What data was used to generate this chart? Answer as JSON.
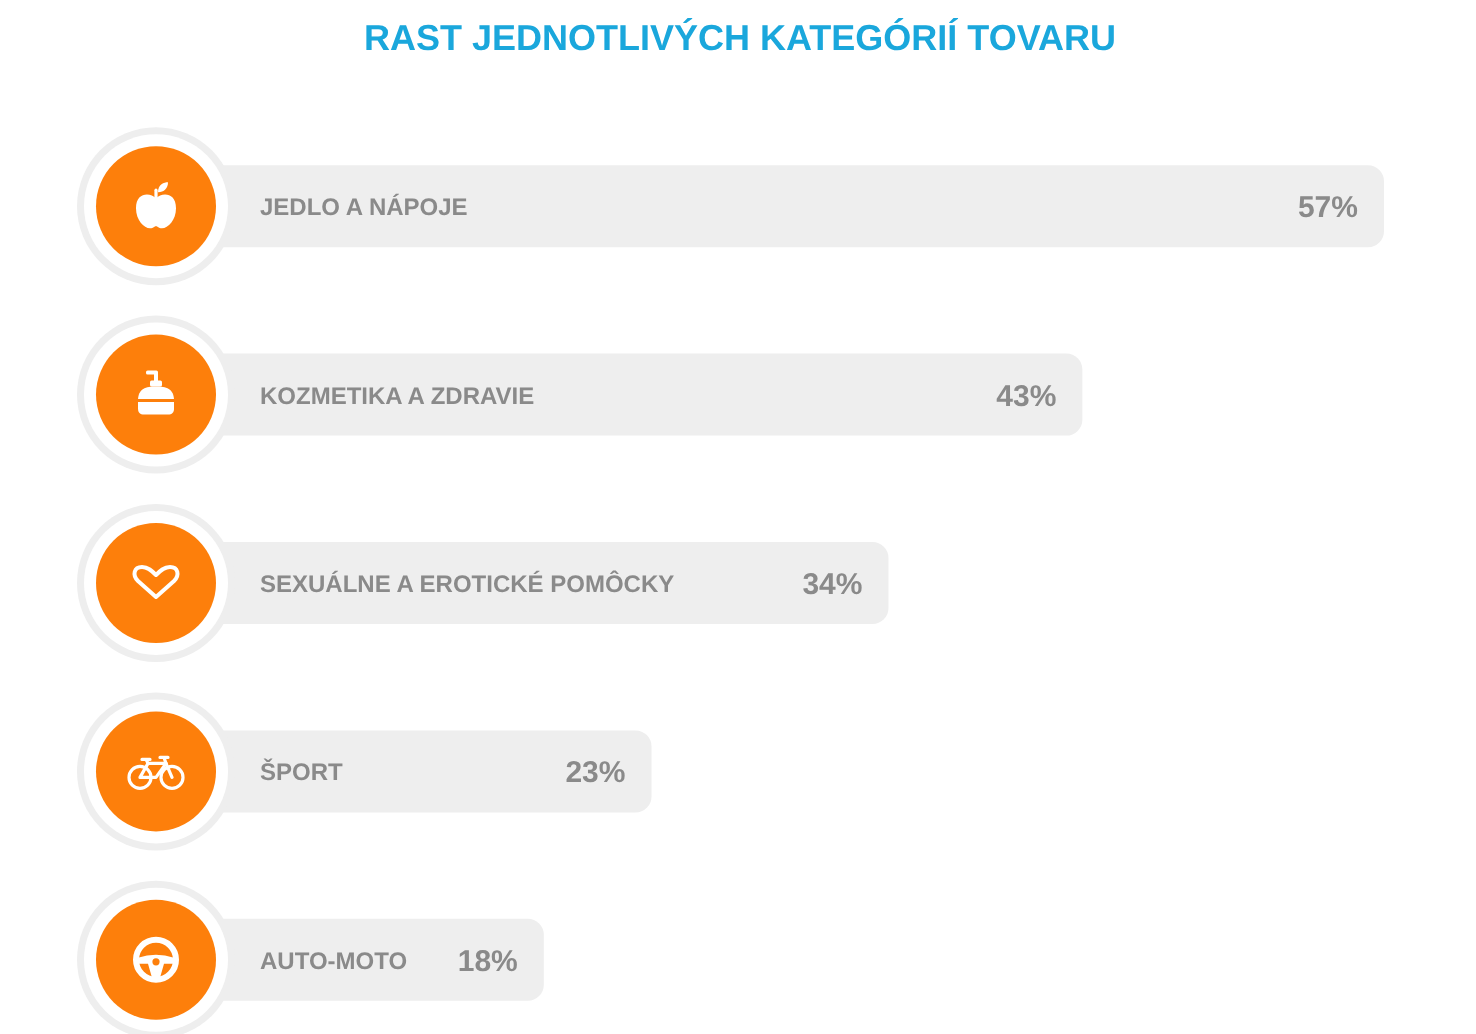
{
  "chart_data": {
    "type": "bar",
    "orientation": "horizontal",
    "title": "RAST JEDNOTLIVÝCH KATEGÓRIÍ TOVARU",
    "categories": [
      "JEDLO A NÁPOJE",
      "KOZMETIKA A ZDRAVIE",
      "SEXUÁLNE A EROTICKÉ POMÔCKY",
      "ŠPORT",
      "AUTO-MOTO"
    ],
    "values": [
      57,
      43,
      34,
      23,
      18
    ],
    "value_labels": [
      "57%",
      "43%",
      "34%",
      "23%",
      "18%"
    ],
    "color": "#eeeeee",
    "tick_labels": "y"
  }
}
